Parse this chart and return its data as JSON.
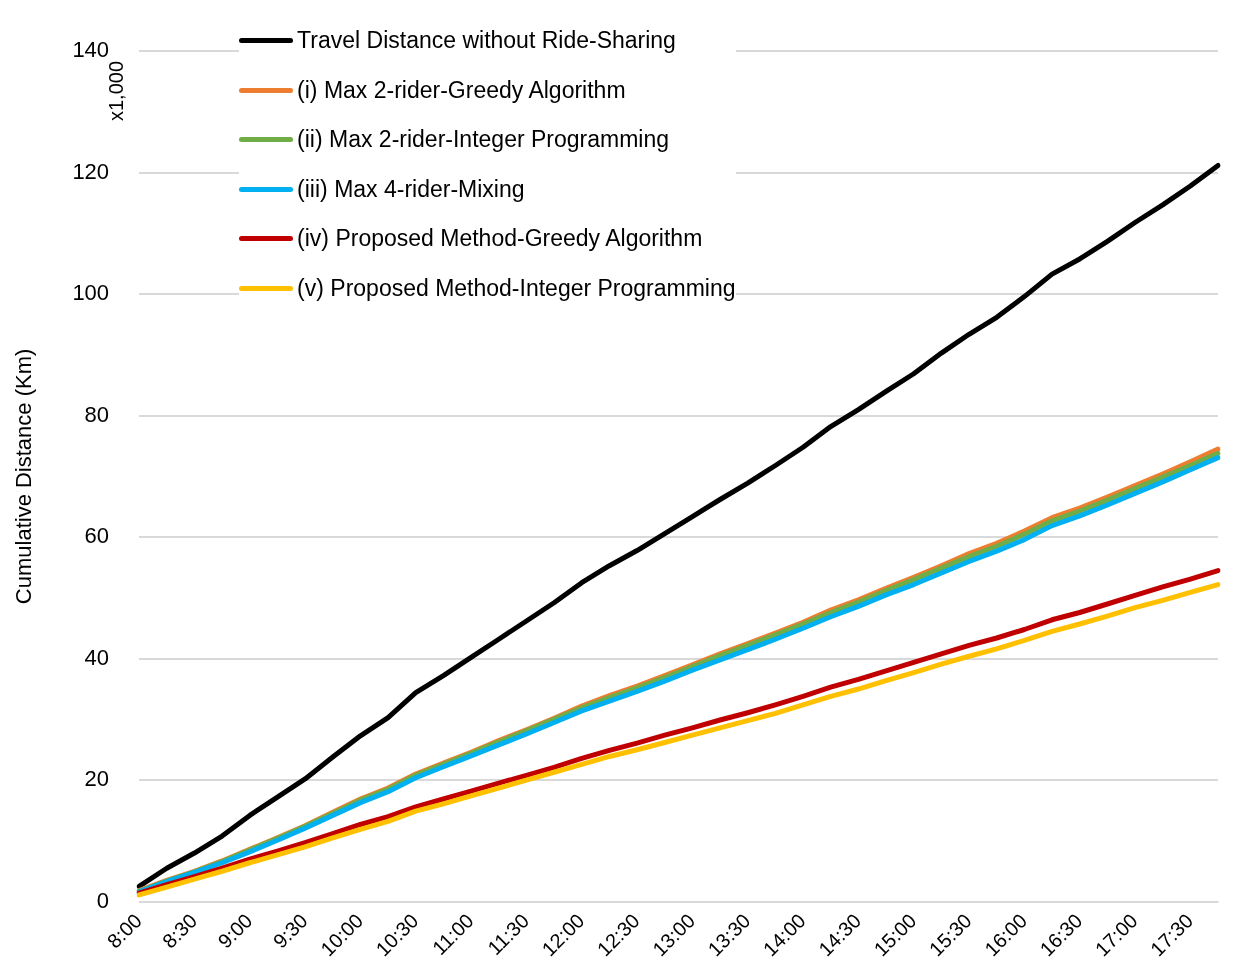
{
  "chart_data": {
    "type": "line",
    "ylabel": "Cumulative Distance (Km)",
    "annotations": [
      "x1,000"
    ],
    "categories": [
      "8:00",
      null,
      "8:30",
      null,
      "9:00",
      null,
      "9:30",
      null,
      "10:00",
      null,
      "10:30",
      null,
      "11:00",
      null,
      "11:30",
      null,
      "12:00",
      null,
      "12:30",
      null,
      "13:00",
      null,
      "13:30",
      null,
      "14:00",
      null,
      "14:30",
      null,
      "15:00",
      null,
      "15:30",
      null,
      "16:00",
      null,
      "16:30",
      null,
      "17:00",
      null,
      "17:30",
      null
    ],
    "series": [
      {
        "name": "Travel Distance without Ride-Sharing",
        "color": "#000000",
        "values": [
          2.5,
          5.5,
          8,
          10.8,
          14.2,
          17.2,
          20.2,
          23.8,
          27.3,
          30.3,
          34.4,
          37.2,
          40.2,
          43.2,
          46.2,
          49.2,
          52.5,
          55.3,
          57.8,
          60.6,
          63.4,
          66.2,
          68.9,
          71.8,
          74.8,
          78.2,
          81,
          84,
          86.9,
          90.3,
          93.4,
          96.2,
          99.6,
          103.3,
          105.8,
          108.7,
          111.8,
          114.7,
          117.8,
          121.2
        ]
      },
      {
        "name": "(i) Max 2-rider-Greedy Algorithm",
        "color": "#ed7d31",
        "values": [
          1.8,
          3.5,
          5,
          6.7,
          8.6,
          10.5,
          12.5,
          14.7,
          16.9,
          18.7,
          21,
          22.8,
          24.6,
          26.5,
          28.3,
          30.2,
          32.2,
          33.9,
          35.5,
          37.2,
          39,
          40.8,
          42.5,
          44.2,
          46,
          48,
          49.7,
          51.6,
          53.4,
          55.3,
          57.3,
          59,
          61,
          63.2,
          64.8,
          66.6,
          68.5,
          70.4,
          72.4,
          74.5
        ]
      },
      {
        "name": "(ii) Max 2-rider-Integer Programming",
        "color": "#70ad47",
        "values": [
          1.7,
          3.4,
          4.9,
          6.6,
          8.5,
          10.4,
          12.4,
          14.5,
          16.7,
          18.5,
          20.8,
          22.6,
          24.4,
          26.3,
          28.1,
          30,
          31.9,
          33.6,
          35.2,
          36.9,
          38.7,
          40.5,
          42.2,
          43.9,
          45.7,
          47.6,
          49.3,
          51.2,
          53,
          54.9,
          56.8,
          58.5,
          60.5,
          62.7,
          64.3,
          66.1,
          68,
          69.9,
          71.8,
          73.8
        ]
      },
      {
        "name": "(iii) Max 4-rider-Mixing",
        "color": "#00b0f0",
        "values": [
          1.6,
          3.3,
          4.8,
          6.4,
          8.2,
          10.1,
          12.1,
          14.2,
          16.3,
          18.1,
          20.4,
          22.2,
          24,
          25.8,
          27.6,
          29.5,
          31.4,
          33,
          34.6,
          36.3,
          38.1,
          39.8,
          41.5,
          43.2,
          45,
          46.9,
          48.6,
          50.5,
          52.2,
          54.1,
          56,
          57.7,
          59.6,
          61.9,
          63.5,
          65.3,
          67.2,
          69.1,
          71.1,
          73.1
        ]
      },
      {
        "name": "(iv) Proposed Method-Greedy Algorithm",
        "color": "#c00000",
        "values": [
          1.4,
          2.8,
          4.1,
          5.5,
          7,
          8.3,
          9.7,
          11.2,
          12.7,
          14,
          15.6,
          16.9,
          18.2,
          19.5,
          20.8,
          22.1,
          23.6,
          24.9,
          26.1,
          27.4,
          28.6,
          29.9,
          31.1,
          32.4,
          33.8,
          35.3,
          36.6,
          38,
          39.4,
          40.8,
          42.2,
          43.4,
          44.8,
          46.4,
          47.6,
          49,
          50.4,
          51.8,
          53.1,
          54.5
        ]
      },
      {
        "name": "(v) Proposed Method-Integer Programming",
        "color": "#ffc000",
        "values": [
          1.1,
          2.4,
          3.7,
          5,
          6.4,
          7.7,
          9,
          10.5,
          11.9,
          13.2,
          14.9,
          16.1,
          17.4,
          18.7,
          20,
          21.3,
          22.6,
          23.9,
          25,
          26.2,
          27.4,
          28.6,
          29.8,
          31,
          32.4,
          33.8,
          35,
          36.4,
          37.7,
          39.1,
          40.4,
          41.6,
          43,
          44.5,
          45.7,
          47,
          48.4,
          49.6,
          50.9,
          52.2
        ]
      }
    ],
    "ylim": [
      0,
      140
    ],
    "yticks": [
      0,
      20,
      40,
      60,
      80,
      100,
      120,
      140
    ],
    "grid": "y",
    "legend": "top left",
    "marker": "none",
    "line_style": "solid"
  }
}
